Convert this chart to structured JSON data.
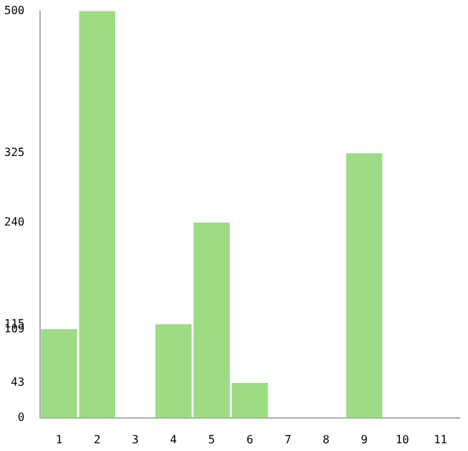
{
  "chart_data": {
    "type": "bar",
    "categories": [
      "1",
      "2",
      "3",
      "4",
      "5",
      "6",
      "7",
      "8",
      "9",
      "10",
      "11"
    ],
    "values": [
      109,
      500,
      0,
      115,
      240,
      43,
      0,
      0,
      325,
      0,
      0
    ],
    "color": "#9ddc85",
    "ylim": [
      0,
      500
    ],
    "yticks": [
      0,
      43,
      109,
      115,
      240,
      325,
      500
    ],
    "grid": false,
    "legend": false
  }
}
